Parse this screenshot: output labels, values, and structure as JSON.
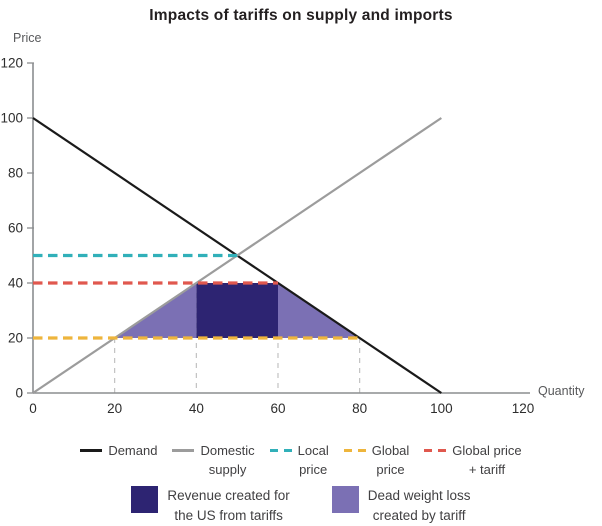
{
  "title": "Impacts of tariffs on supply and imports",
  "chart_data": {
    "type": "line",
    "title": "Impacts of tariffs on supply and imports",
    "xlabel": "Quantity",
    "ylabel": "Price",
    "xlim": [
      0,
      120
    ],
    "ylim": [
      0,
      120
    ],
    "xticks": [
      0,
      20,
      40,
      60,
      80,
      100,
      120
    ],
    "yticks": [
      0,
      20,
      40,
      60,
      80,
      100,
      120
    ],
    "grid": false,
    "legend_position": "bottom",
    "series": [
      {
        "name": "Demand",
        "color": "#1a1a1a",
        "style": "solid",
        "points": [
          [
            0,
            100
          ],
          [
            100,
            0
          ]
        ]
      },
      {
        "name": "Domestic supply",
        "color": "#9c9c9c",
        "style": "solid",
        "points": [
          [
            0,
            0
          ],
          [
            100,
            100
          ]
        ]
      },
      {
        "name": "Local price",
        "color": "#31b0b9",
        "style": "dashed",
        "points": [
          [
            0,
            50
          ],
          [
            50,
            50
          ]
        ]
      },
      {
        "name": "Global price",
        "color": "#eeb53c",
        "style": "dashed",
        "points": [
          [
            0,
            20
          ],
          [
            80,
            20
          ]
        ]
      },
      {
        "name": "Global price + tariff",
        "color": "#e0584e",
        "style": "dashed",
        "points": [
          [
            0,
            40
          ],
          [
            60,
            40
          ]
        ]
      }
    ],
    "regions": [
      {
        "name": "Revenue created for the US from tariffs",
        "color": "#2d2472",
        "polygon": [
          [
            40,
            20
          ],
          [
            40,
            40
          ],
          [
            60,
            40
          ],
          [
            60,
            20
          ]
        ]
      },
      {
        "name": "Dead weight loss created by tariff",
        "color": "#7b70b4",
        "polygon": [
          [
            20,
            20
          ],
          [
            40,
            40
          ],
          [
            40,
            20
          ]
        ]
      },
      {
        "name": "Dead weight loss created by tariff",
        "color": "#7b70b4",
        "polygon": [
          [
            60,
            40
          ],
          [
            80,
            20
          ],
          [
            60,
            20
          ]
        ]
      }
    ],
    "guides": [
      {
        "x": 20,
        "y": 20
      },
      {
        "x": 40,
        "y": 40
      },
      {
        "x": 60,
        "y": 40
      },
      {
        "x": 80,
        "y": 20
      }
    ],
    "colors": {
      "axis": "#8b8d8f",
      "guide": "#bdbdbd",
      "tick_label": "#2d2d2d"
    }
  },
  "legend": {
    "items": [
      {
        "label": "Demand",
        "color": "#1a1a1a",
        "dashed": false
      },
      {
        "label": "Domestic\nsupply",
        "color": "#9c9c9c",
        "dashed": false
      },
      {
        "label": "Local\nprice",
        "color": "#31b0b9",
        "dashed": true
      },
      {
        "label": "Global\nprice",
        "color": "#eeb53c",
        "dashed": true
      },
      {
        "label": "Global price\n+ tariff",
        "color": "#e0584e",
        "dashed": true
      }
    ]
  },
  "fill_legend": {
    "items": [
      {
        "label": "Revenue created for\nthe US from tariffs",
        "color": "#2d2472"
      },
      {
        "label": "Dead weight loss\ncreated by tariff",
        "color": "#7b70b4"
      }
    ]
  }
}
